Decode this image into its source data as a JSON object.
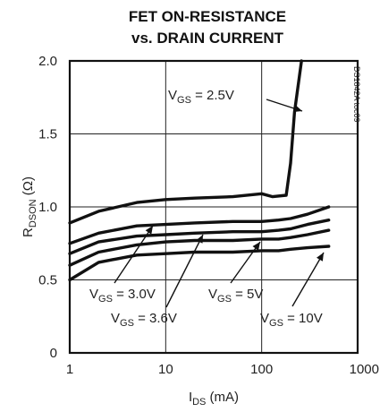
{
  "chart_data": {
    "type": "line",
    "title_lines": [
      "FET ON-RESISTANCE",
      "vs. DRAIN CURRENT"
    ],
    "xlabel_main": "I",
    "xlabel_sub": "DS",
    "xlabel_unit": " (mA)",
    "ylabel_main": "R",
    "ylabel_sub": "DSON",
    "ylabel_unit": " (Ω)",
    "x_scale": "log",
    "xlim": [
      1,
      1000
    ],
    "ylim": [
      0,
      2.0
    ],
    "x_ticks": [
      1,
      10,
      100,
      1000
    ],
    "x_tick_labels": [
      "1",
      "10",
      "100",
      "1000"
    ],
    "y_ticks": [
      0,
      0.5,
      1.0,
      1.5,
      2.0
    ],
    "y_tick_labels": [
      "0",
      "0.5",
      "1.0",
      "1.5",
      "2.0"
    ],
    "grid": true,
    "code_label": "DS1842A toc09",
    "series": [
      {
        "label_main": "V",
        "label_sub": "GS",
        "label_value": " = 2.5V",
        "x": [
          1,
          2,
          5,
          10,
          20,
          50,
          100,
          130,
          180,
          200,
          220,
          260
        ],
        "y": [
          0.89,
          0.97,
          1.03,
          1.05,
          1.06,
          1.07,
          1.09,
          1.07,
          1.08,
          1.3,
          1.65,
          2.0
        ]
      },
      {
        "label_main": "V",
        "label_sub": "GS",
        "label_value": " = 3.0V",
        "x": [
          1,
          2,
          5,
          10,
          20,
          50,
          100,
          150,
          200,
          300,
          500
        ],
        "y": [
          0.75,
          0.82,
          0.87,
          0.88,
          0.89,
          0.9,
          0.9,
          0.91,
          0.92,
          0.95,
          1.0
        ]
      },
      {
        "label_main": "V",
        "label_sub": "GS",
        "label_value": " = 3.6V",
        "x": [
          1,
          2,
          5,
          10,
          20,
          50,
          100,
          150,
          200,
          300,
          500
        ],
        "y": [
          0.68,
          0.76,
          0.8,
          0.81,
          0.82,
          0.83,
          0.83,
          0.84,
          0.85,
          0.88,
          0.91
        ]
      },
      {
        "label_main": "V",
        "label_sub": "GS",
        "label_value": " = 5V",
        "x": [
          1,
          2,
          5,
          10,
          20,
          50,
          100,
          150,
          200,
          300,
          500
        ],
        "y": [
          0.6,
          0.69,
          0.74,
          0.76,
          0.77,
          0.77,
          0.78,
          0.78,
          0.79,
          0.81,
          0.84
        ]
      },
      {
        "label_main": "V",
        "label_sub": "GS",
        "label_value": " = 10V",
        "x": [
          1,
          2,
          5,
          10,
          20,
          50,
          100,
          150,
          200,
          300,
          500
        ],
        "y": [
          0.5,
          0.62,
          0.67,
          0.68,
          0.69,
          0.69,
          0.7,
          0.7,
          0.71,
          0.72,
          0.73
        ]
      }
    ]
  }
}
